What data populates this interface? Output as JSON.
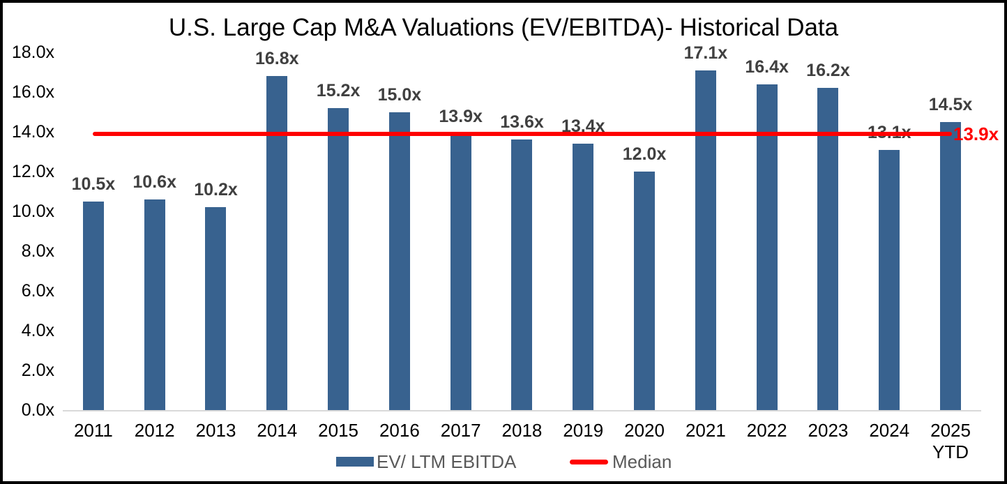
{
  "chart_data": {
    "type": "bar",
    "title": "U.S. Large Cap M&A Valuations (EV/EBITDA)- Historical Data",
    "categories": [
      "2011",
      "2012",
      "2013",
      "2014",
      "2015",
      "2016",
      "2017",
      "2018",
      "2019",
      "2020",
      "2021",
      "2022",
      "2023",
      "2024",
      "2025\nYTD"
    ],
    "series": [
      {
        "name": "EV/ LTM EBITDA",
        "values": [
          10.5,
          10.6,
          10.2,
          16.8,
          15.2,
          15.0,
          13.9,
          13.6,
          13.4,
          12.0,
          17.1,
          16.4,
          16.2,
          13.1,
          14.5
        ]
      }
    ],
    "data_labels": [
      "10.5x",
      "10.6x",
      "10.2x",
      "16.8x",
      "15.2x",
      "15.0x",
      "13.9x",
      "13.6x",
      "13.4x",
      "12.0x",
      "17.1x",
      "16.4x",
      "16.2x",
      "13.1x",
      "14.5x"
    ],
    "median": {
      "name": "Median",
      "value": 13.9,
      "label": "13.9x"
    },
    "xlabel": "",
    "ylabel": "",
    "ylim": [
      0,
      18
    ],
    "yticks": [
      {
        "value": 0,
        "label": "0.0x"
      },
      {
        "value": 2,
        "label": "2.0x"
      },
      {
        "value": 4,
        "label": "4.0x"
      },
      {
        "value": 6,
        "label": "6.0x"
      },
      {
        "value": 8,
        "label": "8.0x"
      },
      {
        "value": 10,
        "label": "10.0x"
      },
      {
        "value": 12,
        "label": "12.0x"
      },
      {
        "value": 14,
        "label": "14.0x"
      },
      {
        "value": 16,
        "label": "16.0x"
      },
      {
        "value": 18,
        "label": "18.0x"
      }
    ],
    "grid": false,
    "legend_position": "bottom",
    "bar_color": "#38628F",
    "median_color": "#FF0000",
    "value_label_color": "#404040",
    "legend_text_color": "#595959",
    "axis_line_color": "#D9D9D9"
  }
}
